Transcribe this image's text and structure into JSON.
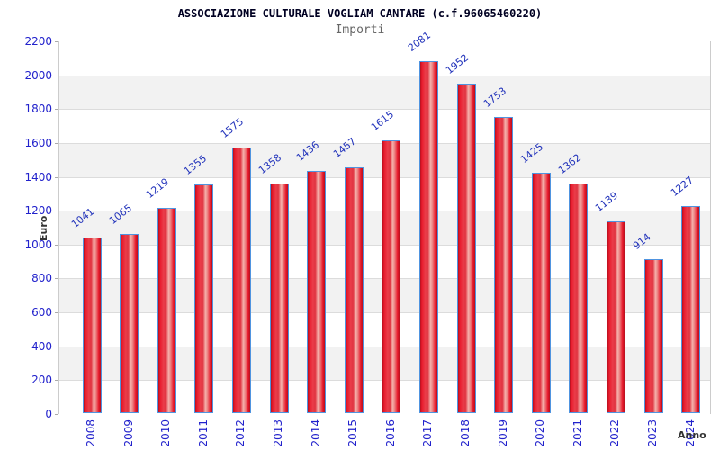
{
  "header": {
    "title": "ASSOCIAZIONE CULTURALE VOGLIAM CANTARE (c.f.96065460220)",
    "subtitle": "Importi"
  },
  "chart_data": {
    "type": "bar",
    "title": "ASSOCIAZIONE CULTURALE VOGLIAM CANTARE (c.f.96065460220)",
    "subtitle": "Importi",
    "xlabel": "Anno",
    "ylabel": "Euro",
    "categories": [
      "2008",
      "2009",
      "2010",
      "2011",
      "2012",
      "2013",
      "2014",
      "2015",
      "2016",
      "2017",
      "2018",
      "2019",
      "2020",
      "2021",
      "2022",
      "2023",
      "2024"
    ],
    "values": [
      1041,
      1065,
      1219,
      1355,
      1575,
      1358,
      1436,
      1457,
      1615,
      2081,
      1952,
      1753,
      1425,
      1362,
      1139,
      914,
      1227
    ],
    "ylim": [
      0,
      2200
    ],
    "ytick_step": 200,
    "grid": true,
    "band_shading": true,
    "bar_labels_rotated": true,
    "legend": null,
    "colors": {
      "bar_fill_dark": "#b50f1d",
      "bar_fill_main": "#e81a2c",
      "bar_fill_light": "#f5b2ac",
      "bar_border": "#4f94e0",
      "axis_text_blue": "#2222cc",
      "value_label_blue": "#2233bb",
      "band_gray": "#f2f2f2",
      "plot_border": "#cccccc",
      "title_color": "#000022",
      "subtitle_color": "#666666",
      "axis_title_color": "#333333"
    }
  }
}
